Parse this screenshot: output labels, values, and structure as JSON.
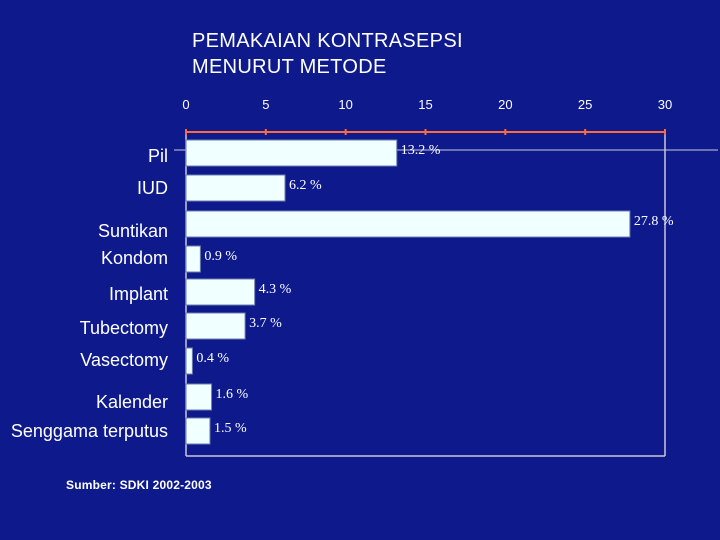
{
  "chart_data": {
    "type": "bar",
    "orientation": "horizontal",
    "title_lines": [
      "PEMAKAIAN KONTRASEPSI",
      "MENURUT METODE"
    ],
    "categories": [
      "Pil",
      "IUD",
      "Suntikan",
      "Kondom",
      "Implant",
      "Tubectomy",
      "Vasectomy",
      "Kalender",
      "Senggama terputus"
    ],
    "values": [
      13.2,
      6.2,
      27.8,
      0.9,
      4.3,
      3.7,
      0.4,
      1.6,
      1.5
    ],
    "data_labels": [
      "13.2 %",
      "6.2 %",
      "27.8 %",
      "0.9 %",
      "4.3 %",
      "3.7 %",
      "0.4 %",
      "1.6 %",
      "1.5 %"
    ],
    "xticks": [
      0,
      5,
      10,
      15,
      20,
      25,
      30
    ],
    "xlim": [
      0,
      30
    ],
    "grid": false,
    "bar_color": "#f0ffff",
    "background_color": "#0e1a8c",
    "axis_color": "#ff6a3d"
  },
  "source": "Sumber: SDKI 2002-2003"
}
